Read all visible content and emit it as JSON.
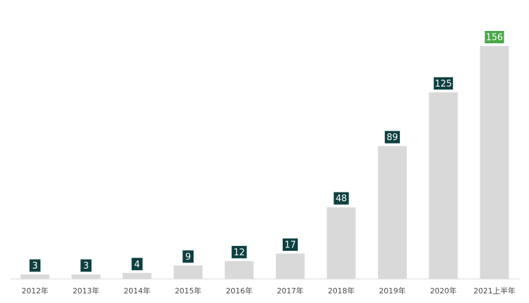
{
  "chart_data": {
    "type": "bar",
    "title": "",
    "xlabel": "",
    "ylabel": "",
    "categories": [
      "2012年",
      "2013年",
      "2014年",
      "2015年",
      "2016年",
      "2017年",
      "2018年",
      "2019年",
      "2020年",
      "2021上半年"
    ],
    "values": [
      3,
      3,
      4,
      9,
      12,
      17,
      48,
      89,
      125,
      156
    ],
    "ylim": [
      0,
      160
    ],
    "grid": false,
    "legend": "none",
    "colors": {
      "bar": "#d9d9d9",
      "label_default": "#0e4040",
      "label_highlight": "#4aa84a",
      "axis": "#d9d9d9",
      "tick_text": "#4a4a4a"
    },
    "highlight_index": 9
  }
}
